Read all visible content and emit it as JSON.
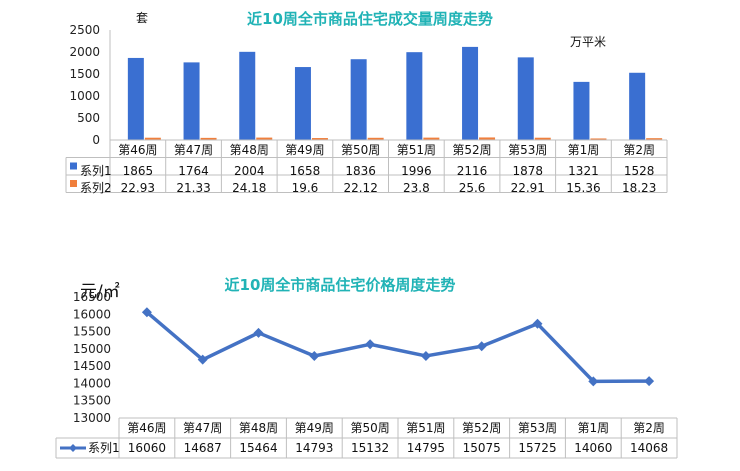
{
  "chart_data": [
    {
      "type": "bar",
      "title": "近10周全市商品住宅成交量周度走势",
      "unit_left": "套",
      "unit_right": "万平米",
      "categories": [
        "第46周",
        "第47周",
        "第48周",
        "第49周",
        "第50周",
        "第51周",
        "第52周",
        "第53周",
        "第1周",
        "第2周"
      ],
      "series": [
        {
          "name": "系列1",
          "values": [
            1865,
            1764,
            2004,
            1658,
            1836,
            1996,
            2116,
            1878,
            1321,
            1528
          ],
          "color": "#3a6fd1"
        },
        {
          "name": "系列2",
          "values": [
            22.93,
            21.33,
            24.18,
            19.6,
            22.12,
            23.8,
            25.6,
            22.91,
            15.36,
            18.23
          ],
          "color": "#f07f3c"
        }
      ],
      "yticks": [
        "0",
        "500",
        "1000",
        "1500",
        "2000",
        "2500"
      ],
      "ylim": [
        0,
        2500
      ],
      "grid": false,
      "legend": "data-table"
    },
    {
      "type": "line",
      "title": "近10周全市商品住宅价格周度走势",
      "unit_left": "元/㎡",
      "categories": [
        "第46周",
        "第47周",
        "第48周",
        "第49周",
        "第50周",
        "第51周",
        "第52周",
        "第53周",
        "第1周",
        "第2周"
      ],
      "series": [
        {
          "name": "系列1",
          "values": [
            16060,
            14687,
            15464,
            14793,
            15132,
            14795,
            15075,
            15725,
            14060,
            14068
          ],
          "color": "#4472c4"
        }
      ],
      "yticks": [
        "13000",
        "13500",
        "14000",
        "14500",
        "15000",
        "15500",
        "16000",
        "16500"
      ],
      "ylim": [
        13000,
        16500
      ],
      "grid": false,
      "legend": "data-table"
    }
  ]
}
